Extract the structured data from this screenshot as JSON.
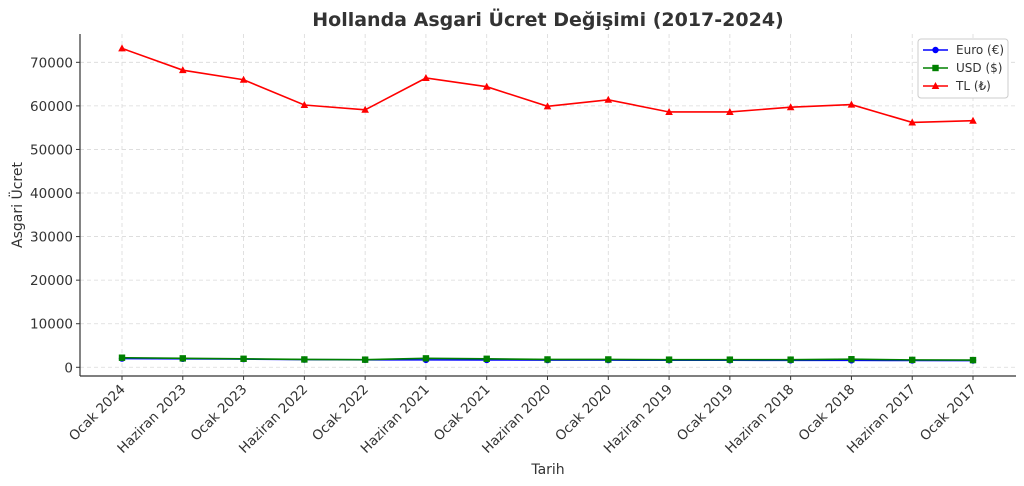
{
  "chart_data": {
    "type": "line",
    "title": "Hollanda Asgari Ücret Değişimi (2017-2024)",
    "xlabel": "Tarih",
    "ylabel": "Asgari Ücret",
    "categories": [
      "Ocak 2024",
      "Haziran 2023",
      "Ocak 2023",
      "Haziran 2022",
      "Ocak 2022",
      "Haziran 2021",
      "Ocak 2021",
      "Haziran 2020",
      "Ocak 2020",
      "Haziran 2019",
      "Ocak 2019",
      "Haziran 2018",
      "Ocak 2018",
      "Haziran 2017",
      "Ocak 2017"
    ],
    "ylim": [
      -2000,
      76500
    ],
    "yticks": [
      0,
      10000,
      20000,
      30000,
      40000,
      50000,
      60000,
      70000
    ],
    "grid": true,
    "legend_position": "top-right",
    "series": [
      {
        "name": "Euro (€)",
        "color": "#0000ff",
        "marker": "circle",
        "values": [
          1995,
          1934,
          1872,
          1756,
          1725,
          1701,
          1685,
          1654,
          1654,
          1616,
          1616,
          1594,
          1594,
          1566,
          1551
        ]
      },
      {
        "name": "USD ($)",
        "color": "#008000",
        "marker": "square",
        "values": [
          2200,
          2050,
          1950,
          1800,
          1750,
          2050,
          1950,
          1800,
          1800,
          1750,
          1750,
          1750,
          1850,
          1700,
          1650
        ]
      },
      {
        "name": "TL (₺)",
        "color": "#ff0000",
        "marker": "triangle",
        "values": [
          73200,
          68200,
          66000,
          60200,
          59100,
          66400,
          64400,
          59900,
          61400,
          58600,
          58600,
          59700,
          60300,
          56200,
          56600
        ]
      }
    ]
  }
}
